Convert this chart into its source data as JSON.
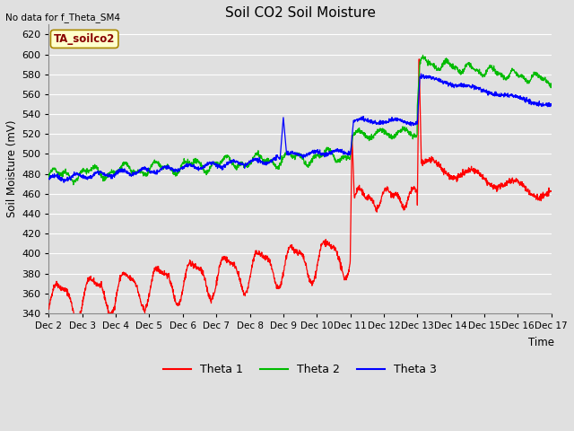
{
  "title": "Soil CO2 Soil Moisture",
  "ylabel": "Soil Moisture (mV)",
  "xlabel": "Time",
  "top_left_text": "No data for f_Theta_SM4",
  "annotation_text": "TA_soilco2",
  "ylim": [
    340,
    630
  ],
  "yticks": [
    340,
    360,
    380,
    400,
    420,
    440,
    460,
    480,
    500,
    520,
    540,
    560,
    580,
    600,
    620
  ],
  "xtick_labels": [
    "Dec 2",
    "Dec 3",
    "Dec 4",
    "Dec 5",
    "Dec 6",
    "Dec 7",
    "Dec 8",
    "Dec 9",
    "Dec 10",
    "Dec 11",
    "Dec 12",
    "Dec 13",
    "Dec 14",
    "Dec 15",
    "Dec 16",
    "Dec 17"
  ],
  "legend_labels": [
    "Theta 1",
    "Theta 2",
    "Theta 3"
  ],
  "line_colors": [
    "#ff0000",
    "#00bb00",
    "#0000ff"
  ],
  "bg_color": "#e0e0e0",
  "grid_color": "#ffffff",
  "fig_color": "#e0e0e0",
  "annotation_bg": "#ffffcc",
  "annotation_border": "#aa8800"
}
